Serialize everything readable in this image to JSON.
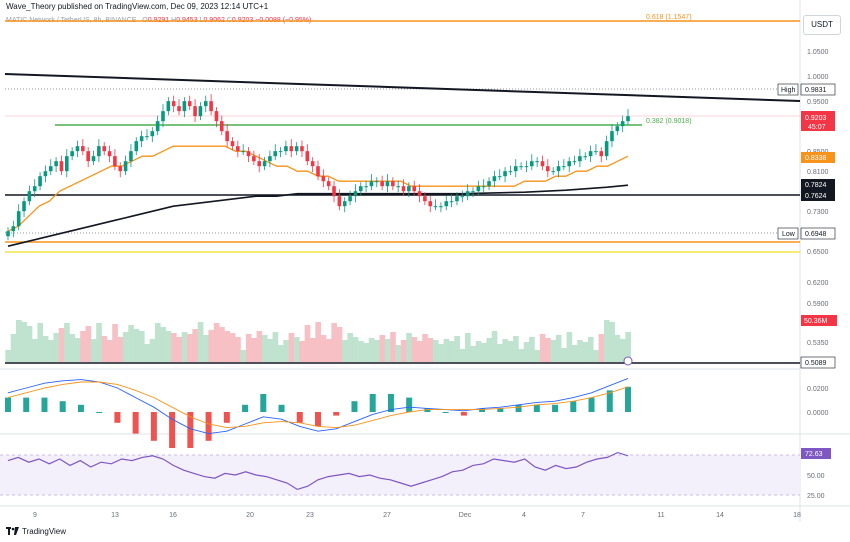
{
  "header": {
    "author_line": "Wave_Theory published on TradingView.com, Dec 09, 2023 12:14 UTC+1"
  },
  "legend": {
    "symbol": "MATIC Network / TetherUS, 8h, BINANCE",
    "open": "0.9291",
    "high": "0.9453",
    "low": "0.9062",
    "close": "0.9203",
    "change": "−0.0088 (−0.95%)"
  },
  "currency": "USDT",
  "footer": {
    "brand": "TradingView"
  },
  "colors": {
    "up": "#089981",
    "down": "#f23645",
    "ema50": "#f7931a",
    "ema200": "#131722",
    "rsi": "#7e57c2",
    "fib": "#f7931a",
    "support": "#131722",
    "green_line": "#4caf50"
  },
  "chart_data": [
    {
      "type": "candlestick",
      "name": "price",
      "x_ticks": [
        "9",
        "13",
        "16",
        "20",
        "23",
        "27",
        "Dec",
        "4",
        "7",
        "11",
        "14",
        "18"
      ],
      "y_ticks": [
        "1.0500",
        "1.0000",
        "0.9500",
        "0.8500",
        "0.8100",
        "0.7300",
        "0.6500",
        "0.6200",
        "0.5900",
        "0.5350"
      ],
      "close_path": [
        0.69,
        0.7,
        0.73,
        0.75,
        0.77,
        0.78,
        0.8,
        0.81,
        0.82,
        0.83,
        0.81,
        0.84,
        0.85,
        0.86,
        0.85,
        0.83,
        0.84,
        0.86,
        0.85,
        0.84,
        0.82,
        0.81,
        0.83,
        0.85,
        0.87,
        0.88,
        0.88,
        0.89,
        0.91,
        0.93,
        0.95,
        0.94,
        0.93,
        0.95,
        0.94,
        0.92,
        0.94,
        0.95,
        0.93,
        0.91,
        0.89,
        0.87,
        0.86,
        0.85,
        0.85,
        0.84,
        0.83,
        0.82,
        0.83,
        0.84,
        0.85,
        0.85,
        0.86,
        0.85,
        0.86,
        0.85,
        0.83,
        0.82,
        0.8,
        0.79,
        0.78,
        0.76,
        0.74,
        0.75,
        0.76,
        0.77,
        0.78,
        0.78,
        0.79,
        0.79,
        0.78,
        0.79,
        0.78,
        0.78,
        0.77,
        0.78,
        0.77,
        0.76,
        0.75,
        0.74,
        0.74,
        0.74,
        0.75,
        0.75,
        0.76,
        0.76,
        0.77,
        0.77,
        0.78,
        0.78,
        0.79,
        0.8,
        0.8,
        0.81,
        0.81,
        0.82,
        0.82,
        0.82,
        0.83,
        0.83,
        0.82,
        0.81,
        0.81,
        0.82,
        0.82,
        0.83,
        0.83,
        0.84,
        0.84,
        0.85,
        0.85,
        0.84,
        0.87,
        0.89,
        0.9,
        0.91,
        0.92
      ],
      "ema50_path": [
        0.69,
        0.7,
        0.72,
        0.74,
        0.75,
        0.77,
        0.78,
        0.79,
        0.8,
        0.81,
        0.82,
        0.82,
        0.83,
        0.84,
        0.84,
        0.85,
        0.86,
        0.86,
        0.86,
        0.86,
        0.86,
        0.86,
        0.85,
        0.85,
        0.84,
        0.83,
        0.82,
        0.82,
        0.81,
        0.81,
        0.8,
        0.8,
        0.79,
        0.79,
        0.79,
        0.79,
        0.79,
        0.79,
        0.79,
        0.78,
        0.78,
        0.78,
        0.78,
        0.78,
        0.78,
        0.78,
        0.78,
        0.78,
        0.78,
        0.78,
        0.79,
        0.79,
        0.79,
        0.8,
        0.8,
        0.81,
        0.81,
        0.82,
        0.82,
        0.83,
        0.84
      ],
      "ema200_path": [
        0.66,
        0.67,
        0.68,
        0.69,
        0.7,
        0.71,
        0.72,
        0.73,
        0.74,
        0.745,
        0.75,
        0.755,
        0.76,
        0.76,
        0.765,
        0.765,
        0.765,
        0.765,
        0.765,
        0.765,
        0.765,
        0.765,
        0.765,
        0.766,
        0.767,
        0.768,
        0.77,
        0.772,
        0.775,
        0.778,
        0.782
      ],
      "last_price": "0.9203",
      "countdown": "45:07",
      "high_label": "High",
      "high_value": "0.9831",
      "low_label": "Low",
      "low_value": "0.6948",
      "ema50_value": "0.8338",
      "ema200_value": "0.7824",
      "support_value": "0.7624",
      "fib_0618": "0.618 (1.1547)",
      "fib_0382": "0.382 (0.9018)",
      "volume_value": "50.36M",
      "volume_floor": "0.5089"
    },
    {
      "type": "line",
      "name": "MACD",
      "y_ticks": [
        "0.0200",
        "0.0000"
      ],
      "macd": [
        0.016,
        0.02,
        0.024,
        0.026,
        0.027,
        0.025,
        0.02,
        0.012,
        0.004,
        -0.006,
        -0.014,
        -0.018,
        -0.016,
        -0.01,
        -0.004,
        -0.006,
        -0.012,
        -0.016,
        -0.014,
        -0.008,
        -0.002,
        0.002,
        0.004,
        0.003,
        0.002,
        0.001,
        0.003,
        0.004,
        0.006,
        0.008,
        0.009,
        0.012,
        0.016,
        0.022,
        0.028
      ],
      "signal": [
        0.012,
        0.016,
        0.02,
        0.023,
        0.025,
        0.025,
        0.023,
        0.018,
        0.012,
        0.004,
        -0.004,
        -0.01,
        -0.013,
        -0.012,
        -0.009,
        -0.008,
        -0.009,
        -0.012,
        -0.013,
        -0.011,
        -0.007,
        -0.003,
        0.0,
        0.002,
        0.002,
        0.002,
        0.002,
        0.003,
        0.004,
        0.006,
        0.007,
        0.009,
        0.012,
        0.016,
        0.021
      ]
    },
    {
      "type": "line",
      "name": "RSI",
      "y_ticks": [
        "50.00",
        "25.00"
      ],
      "current": "72.63",
      "values": [
        68,
        72,
        66,
        70,
        64,
        70,
        62,
        68,
        60,
        66,
        64,
        70,
        68,
        72,
        74,
        70,
        62,
        56,
        52,
        48,
        46,
        52,
        50,
        54,
        50,
        48,
        44,
        40,
        32,
        36,
        44,
        48,
        50,
        52,
        48,
        50,
        46,
        44,
        40,
        36,
        40,
        44,
        48,
        54,
        56,
        62,
        64,
        70,
        68,
        66,
        70,
        60,
        56,
        62,
        58,
        60,
        66,
        70,
        72,
        78,
        74
      ]
    }
  ]
}
